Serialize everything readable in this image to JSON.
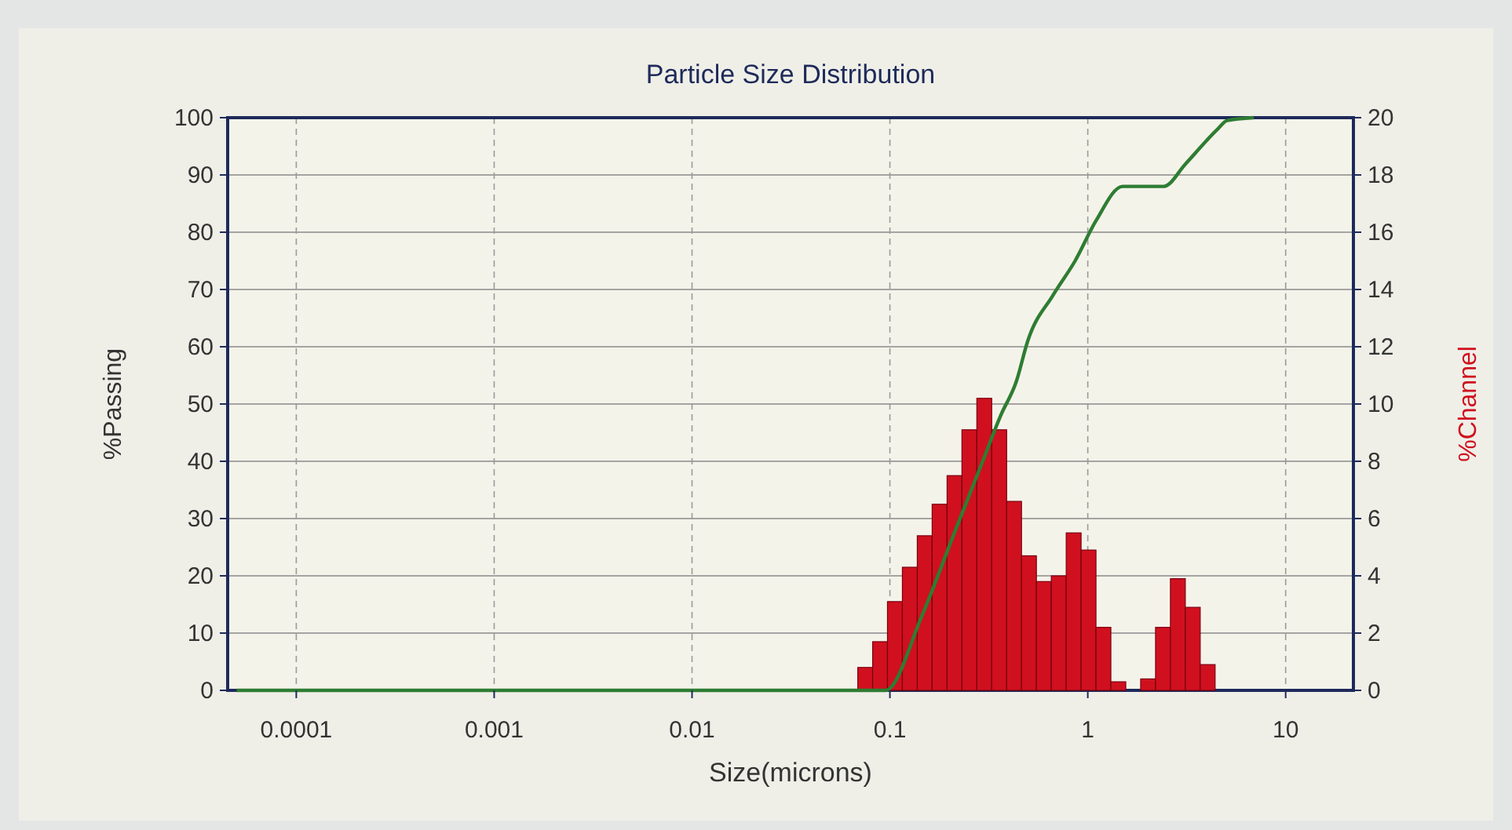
{
  "chart_data": {
    "type": "histogram",
    "title": "Particle Size Distribution",
    "xlabel": "Size(microns)",
    "ylabel": "%Passing",
    "y2label": "%Channel",
    "log": "x",
    "grid": true,
    "xlim": [
      4.5e-05,
      22
    ],
    "xticks": [
      0.0001,
      0.001,
      0.01,
      0.1,
      1,
      10
    ],
    "ylim": [
      0,
      100
    ],
    "yticks": [
      0,
      10,
      20,
      30,
      40,
      50,
      60,
      70,
      80,
      90,
      100
    ],
    "y2lim": [
      0,
      20
    ],
    "y2ticks": [
      0,
      2,
      4,
      6,
      8,
      10,
      12,
      14,
      16,
      18,
      20
    ],
    "series": [
      {
        "axis": "y2",
        "color": "#d0101e",
        "bins": [
          0.0688,
          0.0818,
          0.0972,
          0.1156,
          0.1375,
          0.1635,
          0.1945,
          0.2312,
          0.275,
          0.327,
          0.389,
          0.4625,
          0.55,
          0.654,
          0.778,
          0.925,
          1.1,
          1.308,
          1.556,
          1.85,
          2.2,
          2.616,
          3.111,
          3.7,
          4.4
        ],
        "values": [
          0.8,
          1.7,
          3.1,
          4.3,
          5.4,
          6.5,
          7.5,
          9.1,
          10.2,
          9.1,
          6.6,
          4.7,
          3.8,
          4.0,
          5.5,
          4.9,
          2.2,
          0.3,
          0,
          0.4,
          2.2,
          3.9,
          2.9,
          0.9
        ]
      },
      {
        "type": "line",
        "color": "#2e7d32",
        "x": [
          5e-05,
          0.001,
          0.08,
          0.095,
          0.145,
          0.209,
          0.302,
          0.363,
          0.436,
          0.497,
          0.667,
          0.863,
          1.1,
          1.5,
          2.42,
          3.13,
          4.53,
          5.06,
          6.9
        ],
        "values": [
          0,
          0,
          0,
          0,
          13,
          27,
          41,
          48,
          54,
          61,
          69,
          75,
          82,
          88,
          88,
          92,
          98,
          99.5,
          100
        ]
      }
    ]
  }
}
